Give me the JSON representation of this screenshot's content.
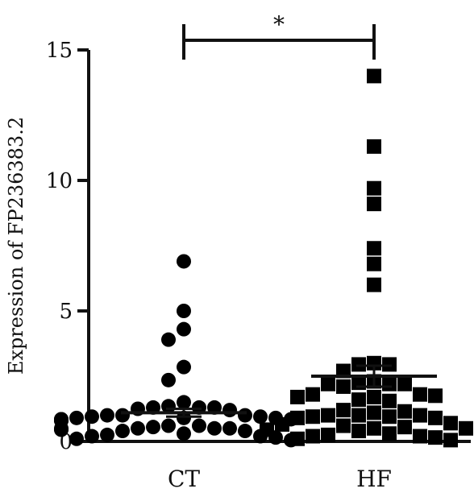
{
  "chart_data": {
    "type": "scatter",
    "title": "",
    "ylabel": "Expression of FP236383.2",
    "xlabel": "",
    "categories": [
      "CT",
      "HF"
    ],
    "ylim": [
      0,
      15
    ],
    "yticks": [
      0,
      5,
      10,
      15
    ],
    "grid": false,
    "legend": "none",
    "significance": {
      "label": "*",
      "between": [
        "CT",
        "HF"
      ]
    },
    "series": [
      {
        "category": "CT",
        "marker": "circle",
        "color": "#000000",
        "mean": 1.1,
        "sem_upper": 1.25,
        "sem_lower": 0.95,
        "values": [
          6.9,
          5.0,
          4.3,
          3.9,
          2.85,
          2.35,
          1.5,
          1.35,
          1.3,
          1.25,
          1.3,
          1.2,
          1.3,
          1.0,
          1.0,
          1.0,
          0.95,
          0.95,
          0.9,
          0.9,
          0.9,
          0.85,
          0.85,
          0.85,
          0.8,
          0.8,
          0.8,
          0.6,
          0.6,
          0.55,
          0.5,
          0.5,
          0.5,
          0.5,
          0.45,
          0.45,
          0.4,
          0.4,
          0.3,
          0.25,
          0.2,
          0.2,
          0.15,
          0.1,
          0.05
        ]
      },
      {
        "category": "HF",
        "marker": "square",
        "color": "#000000",
        "mean": 2.5,
        "sem_upper": 2.9,
        "sem_lower": 2.1,
        "values": [
          14.0,
          11.3,
          9.7,
          9.1,
          7.4,
          6.8,
          6.0,
          3.0,
          2.95,
          2.95,
          2.7,
          2.3,
          2.25,
          2.2,
          2.2,
          2.2,
          2.1,
          1.8,
          1.8,
          1.75,
          1.7,
          1.7,
          1.6,
          1.55,
          1.2,
          1.15,
          1.1,
          1.0,
          1.0,
          1.0,
          0.95,
          0.95,
          0.9,
          0.9,
          0.7,
          0.65,
          0.6,
          0.55,
          0.5,
          0.5,
          0.45,
          0.4,
          0.3,
          0.25,
          0.2,
          0.2,
          0.15,
          0.1,
          0.05
        ]
      }
    ]
  }
}
